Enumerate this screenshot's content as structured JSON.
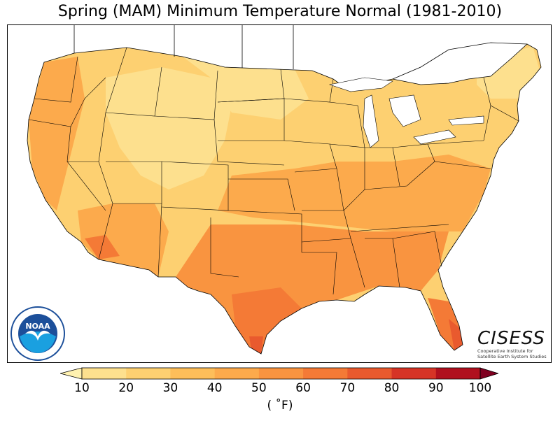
{
  "title": "Spring (MAM) Minimum Temperature Normal (1981-2010)",
  "colorbar": {
    "ticks": [
      "10",
      "20",
      "30",
      "40",
      "50",
      "60",
      "70",
      "80",
      "90",
      "100"
    ],
    "unit": "( ˚F)",
    "colors": [
      "#fff1b0",
      "#fde08e",
      "#fdd071",
      "#fdbe5a",
      "#fcaa4c",
      "#f99440",
      "#f47a36",
      "#e95a2e",
      "#d63426",
      "#b0101e",
      "#7f0020"
    ]
  },
  "logos": {
    "noaa": "NOAA",
    "cisess": "CISESS",
    "cisess_sub_1": "Cooperative Institute for",
    "cisess_sub_2": "Satellite Earth System Studies"
  },
  "map": {
    "region": "Contiguous United States",
    "variable": "Spring minimum temperature normal",
    "colors": {
      "coldest": "#fde08e",
      "cold": "#fdd071",
      "mild": "#fdbe5a",
      "warm": "#fcaa4c",
      "warmer": "#f99440",
      "hot": "#f47a36",
      "hottest": "#e95a2e",
      "border": "#000000"
    }
  }
}
